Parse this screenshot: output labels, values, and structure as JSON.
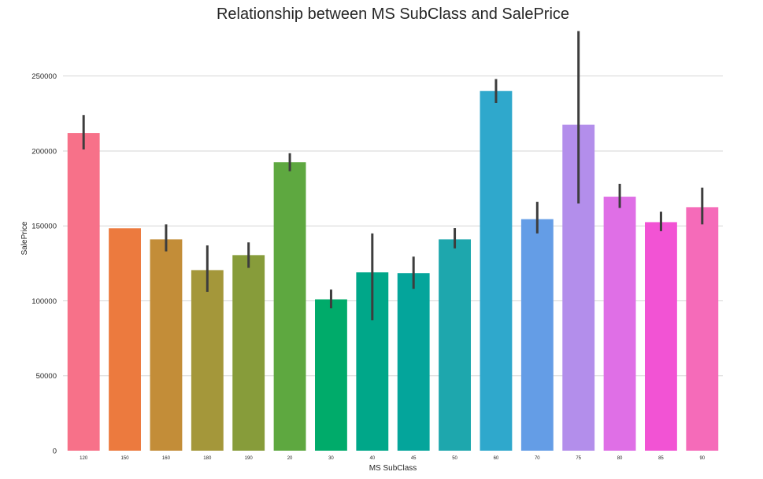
{
  "chart_data": {
    "type": "bar",
    "title": "Relationship between MS SubClass and SalePrice",
    "xlabel": "MS SubClass",
    "ylabel": "SalePrice",
    "categories": [
      "120",
      "150",
      "160",
      "180",
      "190",
      "20",
      "30",
      "40",
      "45",
      "50",
      "60",
      "70",
      "75",
      "80",
      "85",
      "90"
    ],
    "values": [
      212000,
      148400,
      141000,
      120500,
      130500,
      192500,
      101000,
      119000,
      118500,
      141000,
      240000,
      154500,
      217500,
      169500,
      152500,
      162500
    ],
    "error_low": [
      201000,
      148400,
      133000,
      106000,
      122000,
      186500,
      95000,
      87000,
      108000,
      135000,
      232000,
      145000,
      165000,
      162000,
      146500,
      151000
    ],
    "error_high": [
      224000,
      148400,
      151000,
      137000,
      139000,
      198500,
      107500,
      145000,
      129500,
      148500,
      248000,
      166000,
      280000,
      178000,
      159500,
      175500
    ],
    "colors": [
      "#f77189",
      "#ec7a3e",
      "#c38d38",
      "#a4973a",
      "#879c3a",
      "#5ea840",
      "#00ab6a",
      "#00a789",
      "#04a59b",
      "#1ea7ad",
      "#2fa8cc",
      "#649de6",
      "#b38eeb",
      "#df6fe6",
      "#f253d4",
      "#f56bb9"
    ],
    "yticks": [
      0,
      50000,
      100000,
      150000,
      200000,
      250000
    ],
    "ylim": [
      0,
      285000
    ],
    "grid": true,
    "legend": "none"
  }
}
